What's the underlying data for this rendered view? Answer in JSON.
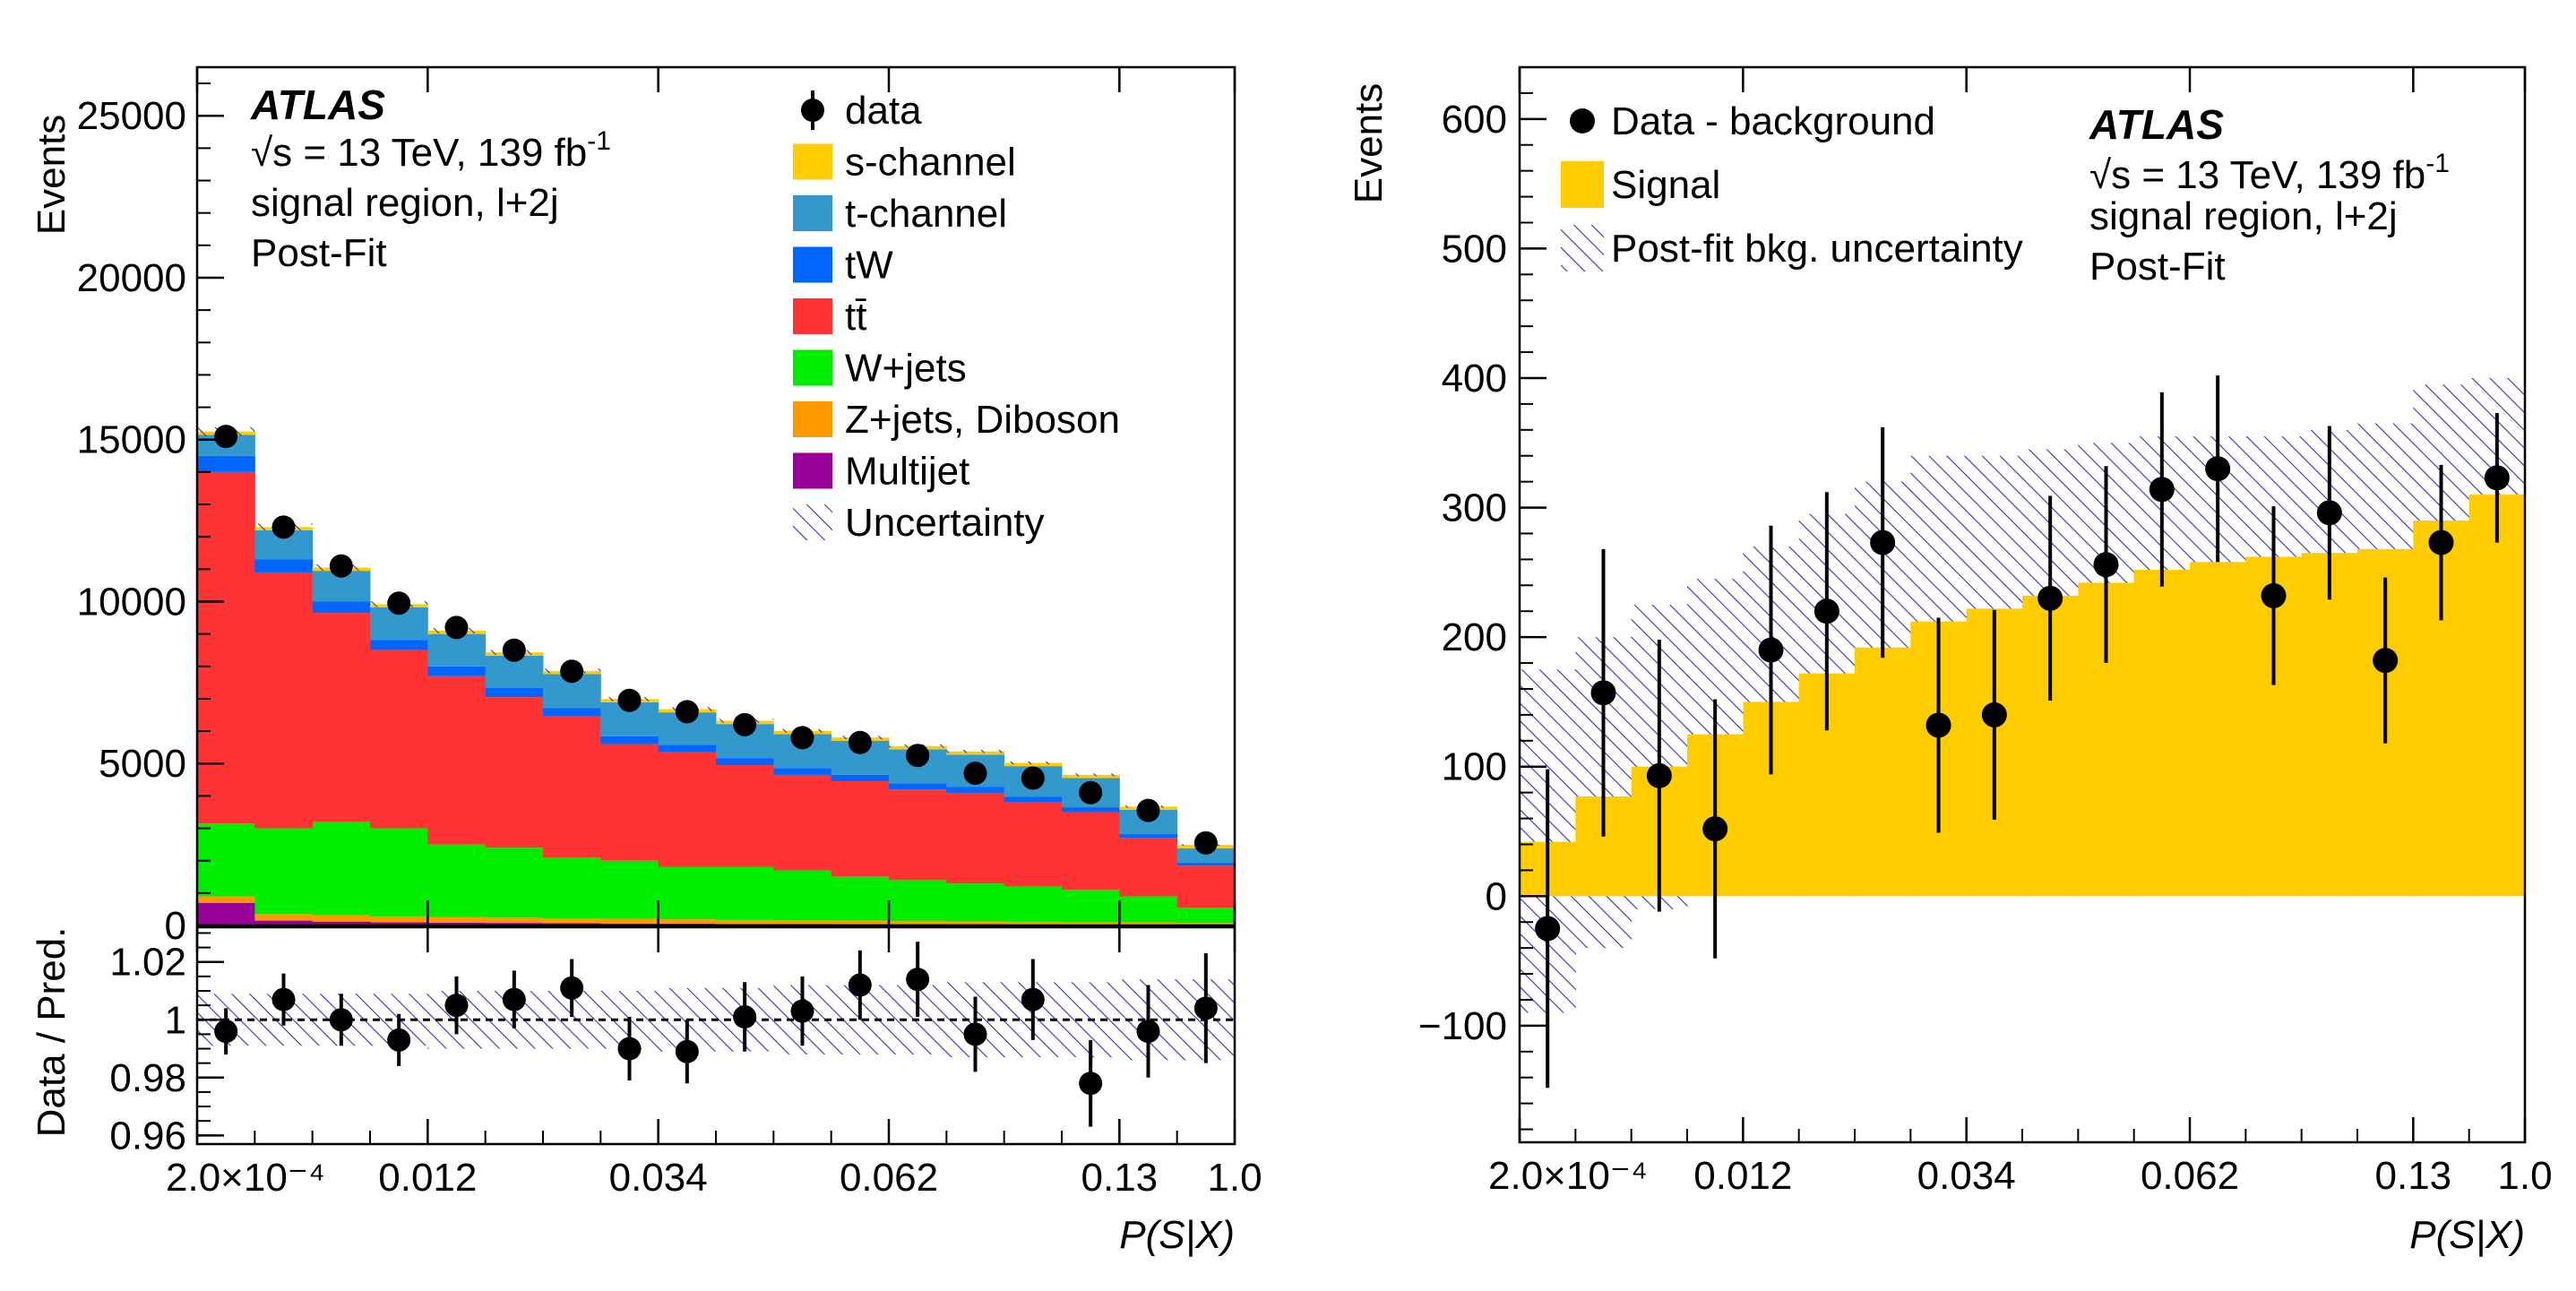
{
  "left": {
    "atlas_label": "ATLAS",
    "info": {
      "energy": "√s = 13 TeV, 139 fb",
      "energy_sup": "-1",
      "region": "signal region, l+2j",
      "fit": "Post-Fit"
    },
    "xlabel": "P(S|X)",
    "ylabel_main": "Events",
    "ylabel_ratio": "Data / Pred.",
    "main_yticks": [
      "0",
      "5000",
      "10000",
      "15000",
      "20000",
      "25000"
    ],
    "ratio_yticks": [
      "0.96",
      "0.98",
      "1",
      "1.02"
    ],
    "xticks": [
      "2.0×10⁻⁴",
      "0.012",
      "0.034",
      "0.062",
      "0.13",
      "1.0"
    ],
    "legend": [
      {
        "key": "data",
        "label": "data",
        "type": "marker"
      },
      {
        "key": "schan",
        "label": "s-channel",
        "type": "box",
        "color": "#ffcc00"
      },
      {
        "key": "tchan",
        "label": "t-channel",
        "type": "box",
        "color": "#3399cc"
      },
      {
        "key": "tw",
        "label": "tW",
        "type": "box",
        "color": "#0066ff"
      },
      {
        "key": "tt",
        "label": "tt̄",
        "type": "box",
        "color": "#ff3333"
      },
      {
        "key": "wjets",
        "label": "W+jets",
        "type": "box",
        "color": "#00ee00"
      },
      {
        "key": "zjets",
        "label": "Z+jets, Diboson",
        "type": "box",
        "color": "#ff9900"
      },
      {
        "key": "multijet",
        "label": "Multijet",
        "type": "box",
        "color": "#990099"
      },
      {
        "key": "unc",
        "label": "Uncertainty",
        "type": "hatch"
      }
    ]
  },
  "right": {
    "atlas_label": "ATLAS",
    "info": {
      "energy": "√s = 13 TeV, 139 fb",
      "energy_sup": "-1",
      "region": "signal region, l+2j",
      "fit": "Post-Fit"
    },
    "xlabel": "P(S|X)",
    "ylabel": "Events",
    "yticks": [
      "−100",
      "0",
      "100",
      "200",
      "300",
      "400",
      "500",
      "600"
    ],
    "xticks": [
      "2.0×10⁻⁴",
      "0.012",
      "0.034",
      "0.062",
      "0.13",
      "1.0"
    ],
    "legend": [
      {
        "key": "data",
        "label": "Data - background",
        "type": "marker"
      },
      {
        "key": "signal",
        "label": "Signal",
        "type": "box",
        "color": "#ffcc00"
      },
      {
        "key": "unc",
        "label": "Post-fit bkg. uncertainty",
        "type": "hatch"
      }
    ]
  },
  "chart_data": [
    {
      "type": "bar",
      "stacked": true,
      "title": "",
      "xlabel": "P(S|X)",
      "ylabel": "Events",
      "nbins": 18,
      "ylim": [
        0,
        26500
      ],
      "series": [
        {
          "name": "Multijet",
          "color": "#990099",
          "values": [
            700,
            150,
            120,
            100,
            90,
            80,
            70,
            60,
            60,
            50,
            50,
            45,
            40,
            40,
            35,
            30,
            30,
            25
          ]
        },
        {
          "name": "Z+jets, Diboson",
          "color": "#ff9900",
          "values": [
            200,
            200,
            200,
            180,
            170,
            160,
            150,
            140,
            130,
            120,
            110,
            100,
            90,
            85,
            80,
            70,
            60,
            50
          ]
        },
        {
          "name": "W+jets",
          "color": "#00ee00",
          "values": [
            2250,
            2650,
            2880,
            2720,
            2240,
            2160,
            1880,
            1800,
            1610,
            1630,
            1540,
            1360,
            1270,
            1170,
            1085,
            1000,
            810,
            470
          ]
        },
        {
          "name": "tt̄",
          "color": "#ff3333",
          "values": [
            10850,
            7900,
            6450,
            5500,
            5200,
            4650,
            4350,
            3600,
            3550,
            3150,
            2950,
            2950,
            2800,
            2800,
            2600,
            2400,
            1800,
            1300
          ]
        },
        {
          "name": "tW",
          "color": "#0066ff",
          "values": [
            500,
            400,
            350,
            320,
            300,
            280,
            260,
            240,
            230,
            220,
            210,
            200,
            190,
            180,
            170,
            150,
            120,
            90
          ]
        },
        {
          "name": "t-channel",
          "color": "#3399cc",
          "values": [
            650,
            900,
            950,
            1000,
            1000,
            1000,
            1050,
            1050,
            1000,
            1050,
            1050,
            1050,
            1050,
            1000,
            950,
            900,
            750,
            450
          ]
        },
        {
          "name": "s-channel",
          "color": "#ffcc00",
          "values": [
            100,
            100,
            100,
            100,
            100,
            100,
            100,
            100,
            100,
            100,
            100,
            100,
            100,
            100,
            100,
            100,
            100,
            100
          ]
        }
      ],
      "data": {
        "name": "data",
        "values": [
          15100,
          12300,
          11100,
          9950,
          9200,
          8500,
          7850,
          6950,
          6600,
          6200,
          5800,
          5650,
          5250,
          4700,
          4550,
          4100,
          3550,
          2550
        ],
        "errors": [
          123,
          111,
          105,
          100,
          96,
          92,
          89,
          83,
          81,
          79,
          76,
          75,
          72,
          69,
          67,
          64,
          60,
          50
        ]
      },
      "ratio": {
        "ylabel": "Data / Pred.",
        "ylim": [
          0.957,
          1.032
        ],
        "values": [
          0.996,
          1.007,
          1.0,
          0.993,
          1.005,
          1.007,
          1.011,
          0.99,
          0.989,
          1.001,
          1.003,
          1.012,
          1.014,
          0.995,
          1.007,
          0.978,
          0.996,
          1.004
        ],
        "errors": [
          0.008,
          0.009,
          0.009,
          0.009,
          0.01,
          0.01,
          0.01,
          0.011,
          0.011,
          0.012,
          0.012,
          0.012,
          0.013,
          0.013,
          0.014,
          0.015,
          0.016,
          0.019
        ],
        "unc_band": [
          0.009,
          0.009,
          0.009,
          0.009,
          0.01,
          0.01,
          0.01,
          0.01,
          0.011,
          0.011,
          0.012,
          0.012,
          0.012,
          0.013,
          0.013,
          0.013,
          0.014,
          0.014
        ]
      },
      "xticks": [
        "2.0×10⁻⁴",
        "0.012",
        "0.034",
        "0.062",
        "0.13",
        "1.0"
      ]
    },
    {
      "type": "bar",
      "title": "",
      "xlabel": "P(S|X)",
      "ylabel": "Events",
      "nbins": 18,
      "ylim": [
        -190,
        640
      ],
      "series": [
        {
          "name": "Signal",
          "color": "#ffcc00",
          "values": [
            42,
            77,
            100,
            125,
            150,
            172,
            192,
            212,
            222,
            232,
            242,
            252,
            258,
            262,
            265,
            268,
            290,
            310
          ]
        }
      ],
      "unc_band": {
        "name": "Post-fit bkg. uncertainty",
        "lo": [
          -90,
          -40,
          -10,
          30,
          55,
          85,
          105,
          125,
          145,
          165,
          175,
          185,
          185,
          195,
          205,
          215,
          230,
          250
        ],
        "hi": [
          175,
          200,
          225,
          245,
          270,
          295,
          320,
          340,
          340,
          345,
          350,
          355,
          355,
          355,
          360,
          365,
          395,
          400
        ]
      },
      "data": {
        "name": "Data - background",
        "values": [
          -25,
          157,
          93,
          52,
          190,
          220,
          273,
          132,
          140,
          230,
          256,
          314,
          330,
          232,
          296,
          182,
          273,
          323
        ],
        "errors": [
          123,
          111,
          105,
          100,
          96,
          92,
          89,
          83,
          81,
          79,
          76,
          75,
          72,
          69,
          67,
          64,
          60,
          50
        ]
      },
      "xticks": [
        "2.0×10⁻⁴",
        "0.012",
        "0.034",
        "0.062",
        "0.13",
        "1.0"
      ]
    }
  ]
}
